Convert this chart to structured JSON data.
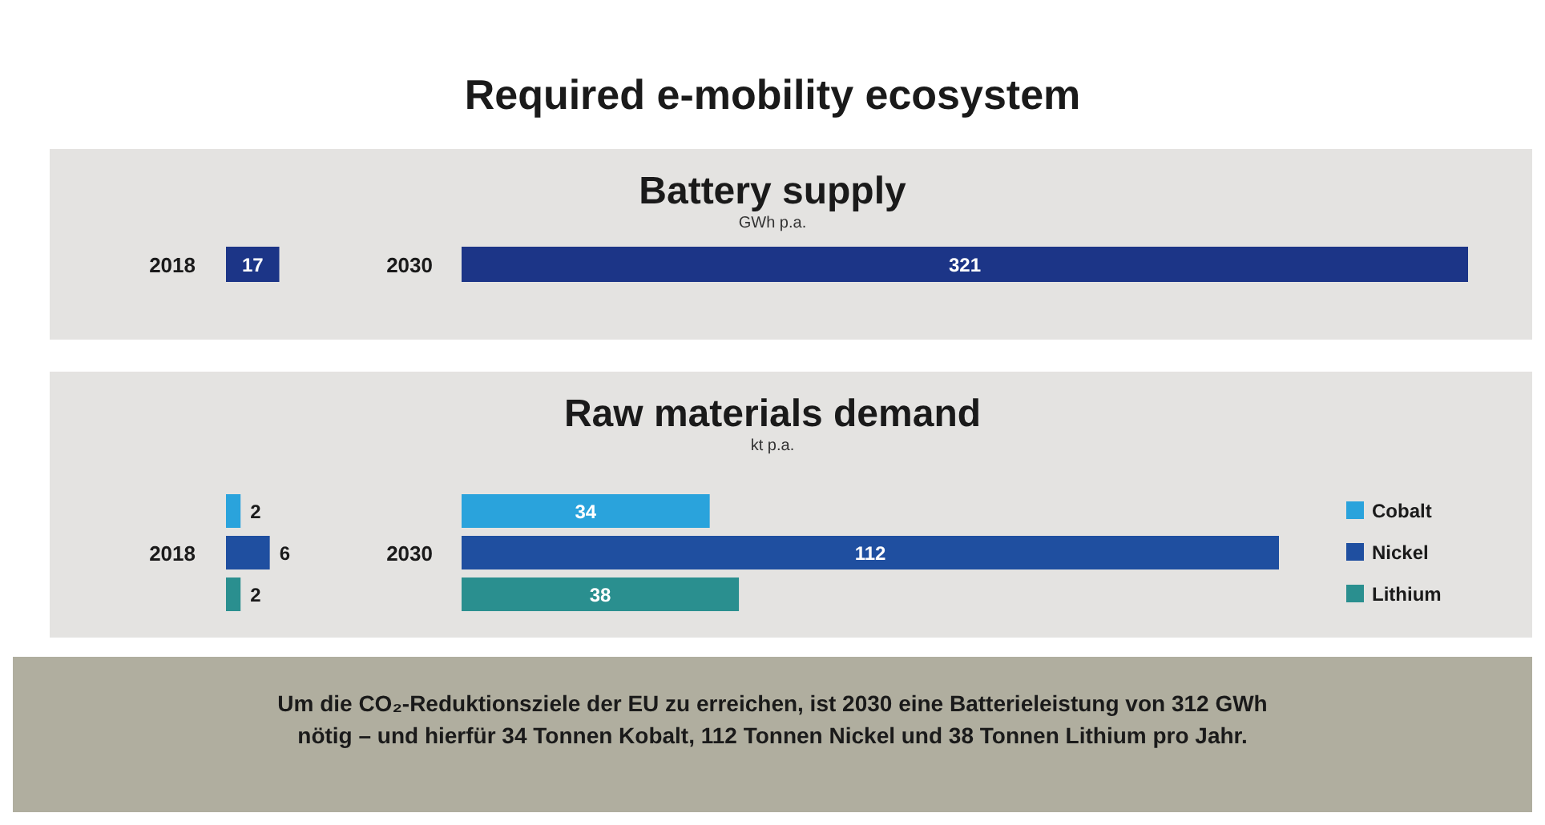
{
  "chart_data": [
    {
      "type": "other",
      "title": "Required e-mobility ecosystem"
    },
    {
      "type": "other",
      "title": "Battery supply",
      "subtitle": "GWh p.a."
    },
    {
      "type": "bar",
      "orientation": "horizontal",
      "categories": [
        "2018"
      ],
      "values": [
        17
      ],
      "color": "#1c3587",
      "data_labels": true
    },
    {
      "type": "bar",
      "orientation": "horizontal",
      "categories": [
        "2030"
      ],
      "values": [
        321
      ],
      "color": "#1c3587",
      "data_labels": true
    },
    {
      "type": "other",
      "title": "Raw materials demand",
      "subtitle": "kt p.a."
    },
    {
      "type": "bar",
      "orientation": "horizontal",
      "categories": [
        "2018"
      ],
      "data_labels": true,
      "series": [
        {
          "color": "#2aa3dc",
          "values": [
            2
          ]
        },
        {
          "color": "#1f4fa0",
          "values": [
            6
          ]
        },
        {
          "color": "#2a8f8f",
          "values": [
            2
          ]
        }
      ]
    },
    {
      "type": "bar",
      "orientation": "horizontal",
      "categories": [
        "2030"
      ],
      "data_labels": true,
      "legend": "right",
      "series": [
        {
          "name": "Cobalt",
          "color": "#2aa3dc",
          "values": [
            34
          ]
        },
        {
          "name": "Nickel",
          "color": "#1f4fa0",
          "values": [
            112
          ]
        },
        {
          "name": "Lithium",
          "color": "#2a8f8f",
          "values": [
            38
          ]
        }
      ]
    },
    {
      "type": "other",
      "annotations": [
        "Um die CO₂-Reduktionsziele der EU zu erreichen, ist 2030 eine Batterieleistung von 312 GWh nötig – und hierfür 34 Tonnen Kobalt, 112 Tonnen Nickel und 38 Tonnen Lithium pro Jahr."
      ]
    }
  ]
}
